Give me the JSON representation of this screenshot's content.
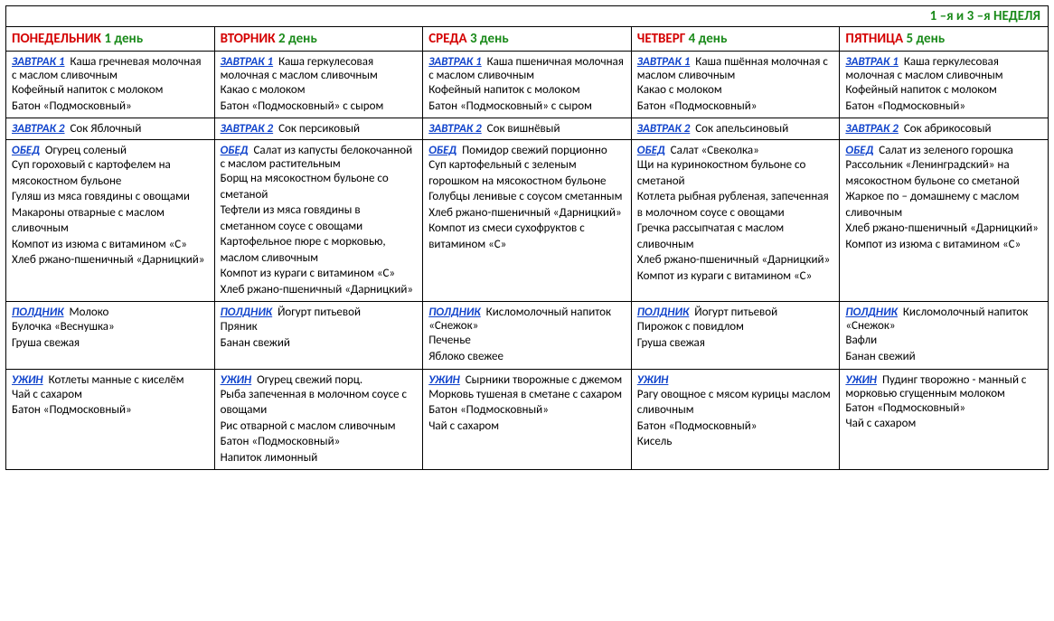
{
  "week_title": "1 –я  и 3 –я  НЕДЕЛЯ",
  "days": [
    {
      "name": "ПОНЕДЕЛЬНИК",
      "num": "1 день"
    },
    {
      "name": "ВТОРНИК",
      "num": "2 день"
    },
    {
      "name": "СРЕДА",
      "num": "3 день"
    },
    {
      "name": "ЧЕТВЕРГ",
      "num": "4 день"
    },
    {
      "name": "ПЯТНИЦА",
      "num": "5 день"
    }
  ],
  "meal_labels": {
    "breakfast1": "ЗАВТРАК 1",
    "breakfast2": "ЗАВТРАК 2",
    "lunch": "ОБЕД",
    "snack": "ПОЛДНИК",
    "dinner": "УЖИН"
  },
  "menu": {
    "breakfast1": [
      [
        "Каша гречневая молочная с маслом сливочным",
        "Кофейный напиток с молоком",
        "Батон «Подмосковный»"
      ],
      [
        "Каша геркулесовая молочная с маслом сливочным",
        "Какао с молоком",
        "Батон «Подмосковный» с сыром"
      ],
      [
        "Каша пшеничная молочная с маслом сливочным",
        "Кофейный напиток с молоком",
        "Батон «Подмосковный» с сыром"
      ],
      [
        "Каша пшённая молочная с маслом сливочным",
        "Какао с молоком",
        "Батон «Подмосковный»"
      ],
      [
        "Каша геркулесовая молочная с маслом сливочным",
        "Кофейный напиток с молоком",
        "Батон «Подмосковный»"
      ]
    ],
    "breakfast2": [
      [
        "Сок Яблочный"
      ],
      [
        "Сок персиковый"
      ],
      [
        "Сок вишнёвый"
      ],
      [
        "Сок апельсиновый"
      ],
      [
        "Сок абрикосовый"
      ]
    ],
    "lunch": [
      [
        "Огурец соленый",
        "Суп гороховый с картофелем на мясокостном бульоне",
        "Гуляш из мяса говядины с овощами",
        "Макароны отварные с маслом сливочным",
        "Компот из изюма с витамином «С»",
        "Хлеб ржано-пшеничный «Дарницкий»"
      ],
      [
        "Салат из капусты белокочанной с маслом растительным",
        "Борщ на мясокостном бульоне со сметаной",
        "Тефтели из мяса говядины в сметанном соусе с овощами",
        "Картофельное пюре с морковью, маслом сливочным",
        "Компот из кураги с витамином «С»",
        "Хлеб ржано-пшеничный «Дарницкий»"
      ],
      [
        "Помидор свежий порционно",
        "Суп картофельный с зеленым горошком на мясокостном бульоне",
        "Голубцы ленивые с соусом сметанным",
        "Хлеб ржано-пшеничный «Дарницкий»",
        "Компот из смеси сухофруктов с витамином «С»"
      ],
      [
        "Салат «Свеколка»",
        "Щи на куринокостном бульоне со сметаной",
        "Котлета рыбная рубленая, запеченная в молочном соусе с овощами",
        "Гречка рассыпчатая с маслом сливочным",
        "Хлеб ржано-пшеничный «Дарницкий»",
        "Компот из кураги с витамином «С»"
      ],
      [
        "Салат из зеленого горошка",
        "Рассольник «Ленинградский» на мясокостном бульоне со сметаной",
        "Жаркое по – домашнему с маслом сливочным",
        "Хлеб ржано-пшеничный «Дарницкий»",
        "Компот из изюма с витамином «С»"
      ]
    ],
    "snack": [
      [
        "Молоко",
        "Булочка «Веснушка»",
        "Груша свежая"
      ],
      [
        "Йогурт питьевой",
        "Пряник",
        "Банан свежий"
      ],
      [
        "Кисломолочный напиток «Снежок»",
        "Печенье",
        "Яблоко свежее"
      ],
      [
        "Йогурт питьевой",
        "Пирожок с повидлом",
        "Груша свежая"
      ],
      [
        "Кисломолочный напиток «Снежок»",
        "Вафли",
        "Банан свежий"
      ]
    ],
    "dinner": [
      [
        "Котлеты манные с киселём",
        "Чай с сахаром",
        "Батон «Подмосковный»"
      ],
      [
        "Огурец свежий порц.",
        "Рыба запеченная в молочном соусе с овощами",
        "Рис отварной с маслом сливочным",
        "Батон «Подмосковный»",
        "Напиток лимонный"
      ],
      [
        "Сырники творожные с джемом",
        "Морковь тушеная в сметане с сахаром",
        "Батон «Подмосковный»",
        "Чай с сахаром"
      ],
      [
        "",
        "Рагу овощное с мясом курицы маслом сливочным",
        "Батон «Подмосковный»",
        "Кисель"
      ],
      [
        "Пудинг творожно - манный с морковью сгущенным молоком",
        "Батон «Подмосковный»",
        "Чай с сахаром"
      ]
    ]
  }
}
